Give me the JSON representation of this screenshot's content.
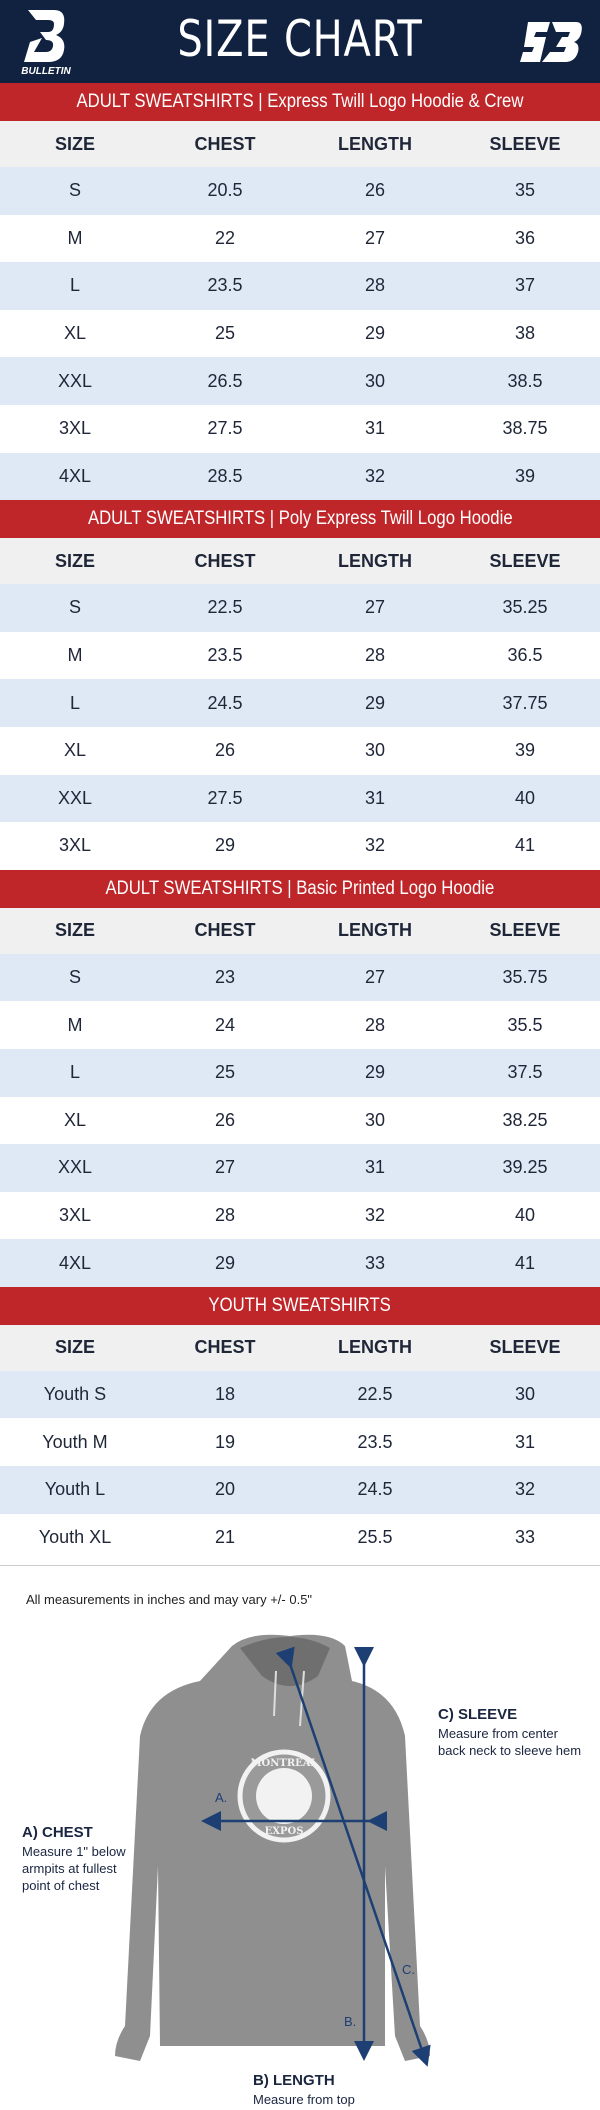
{
  "header": {
    "title": "SIZE CHART",
    "brand_left": "BULLETIN",
    "brand_right": "SB",
    "navy": "#10223f",
    "red": "#bf2629"
  },
  "columns": [
    "SIZE",
    "CHEST",
    "LENGTH",
    "SLEEVE"
  ],
  "sections": [
    {
      "title": "ADULT SWEATSHIRTS | Express Twill Logo Hoodie & Crew",
      "rows": [
        [
          "S",
          "20.5",
          "26",
          "35"
        ],
        [
          "M",
          "22",
          "27",
          "36"
        ],
        [
          "L",
          "23.5",
          "28",
          "37"
        ],
        [
          "XL",
          "25",
          "29",
          "38"
        ],
        [
          "XXL",
          "26.5",
          "30",
          "38.5"
        ],
        [
          "3XL",
          "27.5",
          "31",
          "38.75"
        ],
        [
          "4XL",
          "28.5",
          "32",
          "39"
        ]
      ]
    },
    {
      "title": "ADULT SWEATSHIRTS | Poly Express Twill Logo Hoodie",
      "rows": [
        [
          "S",
          "22.5",
          "27",
          "35.25"
        ],
        [
          "M",
          "23.5",
          "28",
          "36.5"
        ],
        [
          "L",
          "24.5",
          "29",
          "37.75"
        ],
        [
          "XL",
          "26",
          "30",
          "39"
        ],
        [
          "XXL",
          "27.5",
          "31",
          "40"
        ],
        [
          "3XL",
          "29",
          "32",
          "41"
        ]
      ]
    },
    {
      "title": "ADULT SWEATSHIRTS | Basic Printed Logo Hoodie",
      "rows": [
        [
          "S",
          "23",
          "27",
          "35.75"
        ],
        [
          "M",
          "24",
          "28",
          "35.5"
        ],
        [
          "L",
          "25",
          "29",
          "37.5"
        ],
        [
          "XL",
          "26",
          "30",
          "38.25"
        ],
        [
          "XXL",
          "27",
          "31",
          "39.25"
        ],
        [
          "3XL",
          "28",
          "32",
          "40"
        ],
        [
          "4XL",
          "29",
          "33",
          "41"
        ]
      ]
    },
    {
      "title": "YOUTH SWEATSHIRTS",
      "rows": [
        [
          "Youth S",
          "18",
          "22.5",
          "30"
        ],
        [
          "Youth M",
          "19",
          "23.5",
          "31"
        ],
        [
          "Youth L",
          "20",
          "24.5",
          "32"
        ],
        [
          "Youth XL",
          "21",
          "25.5",
          "33"
        ]
      ]
    }
  ],
  "footer": {
    "note": "All measurements in inches and may vary +/- 0.5\"",
    "chest": {
      "title": "A) CHEST",
      "desc": "Measure 1\" below armpits at fullest point of chest"
    },
    "length": {
      "title": "B) LENGTH",
      "desc": "Measure from top of shoulder to bottom of hem"
    },
    "sleeve": {
      "title": "C) SLEEVE",
      "desc": "Measure from center back neck to sleeve hem"
    },
    "markers": {
      "a": "A.",
      "b": "B.",
      "c": "C."
    },
    "logo_text": {
      "top": "MONTREAL",
      "bottom": "EXPOS"
    }
  }
}
